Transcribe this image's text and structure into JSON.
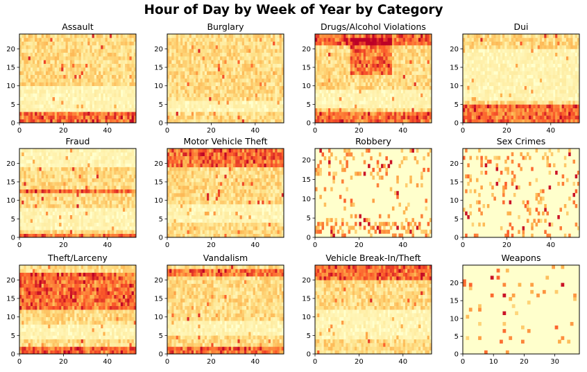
{
  "figure": {
    "suptitle": "Hour of Day by Week of Year by Category"
  },
  "chart_data": [
    {
      "type": "heatmap",
      "title": "Assault",
      "colormap": "YlOrRd",
      "xlim": [
        0,
        53
      ],
      "ylim": [
        0,
        24
      ],
      "xticks": [
        0,
        20,
        40
      ],
      "yticks": [
        0,
        5,
        10,
        15,
        20
      ],
      "hot_rows": [
        0,
        1,
        2
      ],
      "cool_rows": [
        3,
        4,
        5,
        6,
        7,
        8,
        9
      ],
      "note_hint": "peak near hours 1-2"
    },
    {
      "type": "heatmap",
      "title": "Burglary",
      "colormap": "YlOrRd",
      "xlim": [
        0,
        53
      ],
      "ylim": [
        0,
        24
      ],
      "xticks": [
        0,
        20,
        40
      ],
      "yticks": [
        0,
        5,
        10,
        15,
        20
      ],
      "hot_rows": [],
      "cool_rows": [
        3,
        4,
        5
      ]
    },
    {
      "type": "heatmap",
      "title": "Drugs/Alcohol Violations",
      "colormap": "YlOrRd",
      "xlim": [
        0,
        53
      ],
      "ylim": [
        0,
        24
      ],
      "xticks": [
        0,
        20,
        40
      ],
      "yticks": [
        0,
        5,
        10,
        15,
        20
      ],
      "hot_rows": [
        0,
        1,
        2,
        21,
        22,
        23
      ],
      "cool_rows": [
        4,
        5,
        6,
        7,
        8
      ],
      "hot_block": {
        "x": [
          16,
          34
        ],
        "y": [
          13,
          22
        ]
      }
    },
    {
      "type": "heatmap",
      "title": "Dui",
      "colormap": "YlOrRd",
      "xlim": [
        0,
        53
      ],
      "ylim": [
        0,
        24
      ],
      "xticks": [
        0,
        20,
        40
      ],
      "yticks": [
        0,
        5,
        10,
        15,
        20
      ],
      "hot_rows": [
        0,
        1,
        2,
        3,
        4
      ],
      "cool_rows": [
        6,
        7,
        8,
        9,
        10,
        11,
        12,
        13,
        14,
        15,
        16,
        17,
        18,
        19
      ]
    },
    {
      "type": "heatmap",
      "title": "Fraud",
      "colormap": "YlOrRd",
      "xlim": [
        0,
        53
      ],
      "ylim": [
        0,
        24
      ],
      "xticks": [
        0,
        20,
        40
      ],
      "yticks": [
        0,
        5,
        10,
        15,
        20
      ],
      "hot_rows": [
        0,
        12
      ],
      "cool_rows": [
        2,
        3,
        4,
        5,
        6,
        7,
        19,
        20,
        21,
        22,
        23
      ]
    },
    {
      "type": "heatmap",
      "title": "Motor Vehicle Theft",
      "colormap": "YlOrRd",
      "xlim": [
        0,
        53
      ],
      "ylim": [
        0,
        24
      ],
      "xticks": [
        0,
        20,
        40
      ],
      "yticks": [
        0,
        5,
        10,
        15,
        20
      ],
      "hot_rows": [
        19,
        20,
        21,
        22,
        23
      ],
      "cool_rows": [
        4,
        5,
        6,
        7,
        8
      ]
    },
    {
      "type": "heatmap",
      "title": "Robbery",
      "colormap": "YlOrRd",
      "xlim": [
        0,
        53
      ],
      "ylim": [
        0,
        23
      ],
      "xticks": [
        0,
        20,
        40
      ],
      "yticks": [
        0,
        5,
        10,
        15,
        20
      ],
      "hot_rows": [
        1,
        2,
        3
      ],
      "cool_rows": [
        5,
        6,
        7,
        8,
        9,
        10,
        11,
        12,
        13,
        14
      ]
    },
    {
      "type": "heatmap",
      "title": "Sex Crimes",
      "colormap": "YlOrRd",
      "xlim": [
        0,
        53
      ],
      "ylim": [
        0,
        24
      ],
      "xticks": [
        0,
        20,
        40
      ],
      "yticks": [
        0,
        5,
        10,
        15,
        20
      ],
      "hot_rows": [],
      "cool_rows": []
    },
    {
      "type": "heatmap",
      "title": "Theft/Larceny",
      "colormap": "YlOrRd",
      "xlim": [
        0,
        53
      ],
      "ylim": [
        0,
        24
      ],
      "xticks": [
        0,
        20,
        40
      ],
      "yticks": [
        0,
        5,
        10,
        15,
        20
      ],
      "hot_rows": [
        0,
        1,
        12,
        13,
        14,
        15,
        16,
        17,
        18,
        19,
        20,
        21
      ],
      "cool_rows": [
        4,
        5,
        6,
        7
      ]
    },
    {
      "type": "heatmap",
      "title": "Vandalism",
      "colormap": "YlOrRd",
      "xlim": [
        0,
        53
      ],
      "ylim": [
        0,
        24
      ],
      "xticks": [
        0,
        20,
        40
      ],
      "yticks": [
        0,
        5,
        10,
        15,
        20
      ],
      "hot_rows": [
        0,
        1,
        21,
        22
      ],
      "cool_rows": [
        5,
        6,
        7,
        8
      ]
    },
    {
      "type": "heatmap",
      "title": "Vehicle Break-In/Theft",
      "colormap": "YlOrRd",
      "xlim": [
        0,
        53
      ],
      "ylim": [
        0,
        24
      ],
      "xticks": [
        0,
        20,
        40
      ],
      "yticks": [
        0,
        5,
        10,
        15,
        20
      ],
      "hot_rows": [
        20,
        21,
        22,
        23
      ],
      "cool_rows": [
        4,
        5,
        6,
        7,
        8,
        9,
        10,
        11
      ]
    },
    {
      "type": "heatmap",
      "title": "Weapons",
      "colormap": "YlOrRd",
      "xlim": [
        0,
        38
      ],
      "ylim": [
        0,
        25
      ],
      "xticks": [
        0,
        10,
        20,
        30
      ],
      "yticks": [
        0,
        5,
        10,
        15,
        20
      ],
      "hot_rows": [],
      "cool_rows": []
    }
  ],
  "colors": {
    "cmap_low": "#ffffcc",
    "cmap_mid1": "#fee087",
    "cmap_mid2": "#fdb14c",
    "cmap_mid3": "#fc5b2a",
    "cmap_high": "#bd0026",
    "axis": "#000000",
    "background": "#ffffff"
  }
}
